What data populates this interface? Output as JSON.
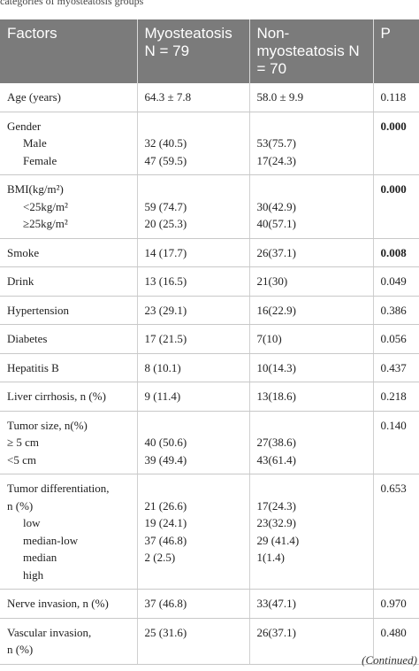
{
  "caption_fragment": "categories of myosteatosis groups",
  "header": {
    "factors": "Factors",
    "myo": "Myosteatosis N = 79",
    "nonmyo": "Non-myosteatosis N = 70",
    "p": "P"
  },
  "rows": {
    "age": {
      "label": "Age (years)",
      "myo": "64.3 ± 7.8",
      "non": "58.0 ± 9.9",
      "p": "0.118"
    },
    "gender": {
      "label": "Gender",
      "sub1": "Male",
      "sub2": "Female",
      "myo1": "32 (40.5)",
      "myo2": "47 (59.5)",
      "non1": "53(75.7)",
      "non2": "17(24.3)",
      "p": "0.000"
    },
    "bmi": {
      "label": "BMI(kg/m²)",
      "sub1": "<25kg/m²",
      "sub2": "≥25kg/m²",
      "myo1": "59 (74.7)",
      "myo2": "20 (25.3)",
      "non1": "30(42.9)",
      "non2": "40(57.1)",
      "p": "0.000"
    },
    "smoke": {
      "label": "Smoke",
      "myo": "14 (17.7)",
      "non": "26(37.1)",
      "p": "0.008"
    },
    "drink": {
      "label": "Drink",
      "myo": "13 (16.5)",
      "non": "21(30)",
      "p": "0.049"
    },
    "hypertension": {
      "label": "Hypertension",
      "myo": "23 (29.1)",
      "non": "16(22.9)",
      "p": "0.386"
    },
    "diabetes": {
      "label": "Diabetes",
      "myo": "17 (21.5)",
      "non": "7(10)",
      "p": "0.056"
    },
    "hepatitis": {
      "label": "Hepatitis B",
      "myo": "8 (10.1)",
      "non": "10(14.3)",
      "p": "0.437"
    },
    "cirrhosis": {
      "label": "Liver cirrhosis, n (%)",
      "myo": "9 (11.4)",
      "non": "13(18.6)",
      "p": "0.218"
    },
    "tumor_size": {
      "label": "Tumor size, n(%)",
      "sub1": "≥ 5 cm",
      "sub2": "<5 cm",
      "myo1": "40 (50.6)",
      "myo2": "39 (49.4)",
      "non1": "27(38.6)",
      "non2": "43(61.4)",
      "p": "0.140"
    },
    "differentiation": {
      "label1": "Tumor differentiation,",
      "label2": "n (%)",
      "sub1": "low",
      "sub2": "median-low",
      "sub3": "median",
      "sub4": "high",
      "myo1": "21 (26.6)",
      "myo2": "19 (24.1)",
      "myo3": "37 (46.8)",
      "myo4": "2 (2.5)",
      "non1": "17(24.3)",
      "non2": "23(32.9)",
      "non3": "29 (41.4)",
      "non4": "1(1.4)",
      "p": "0.653"
    },
    "nerve": {
      "label": "Nerve invasion, n (%)",
      "myo": "37 (46.8)",
      "non": "33(47.1)",
      "p": "0.970"
    },
    "vascular": {
      "label1": "Vascular invasion,",
      "label2": "n (%)",
      "myo": "25 (31.6)",
      "non": "26(37.1)",
      "p": "0.480"
    }
  },
  "footer": {
    "continued": "(Continued)"
  }
}
